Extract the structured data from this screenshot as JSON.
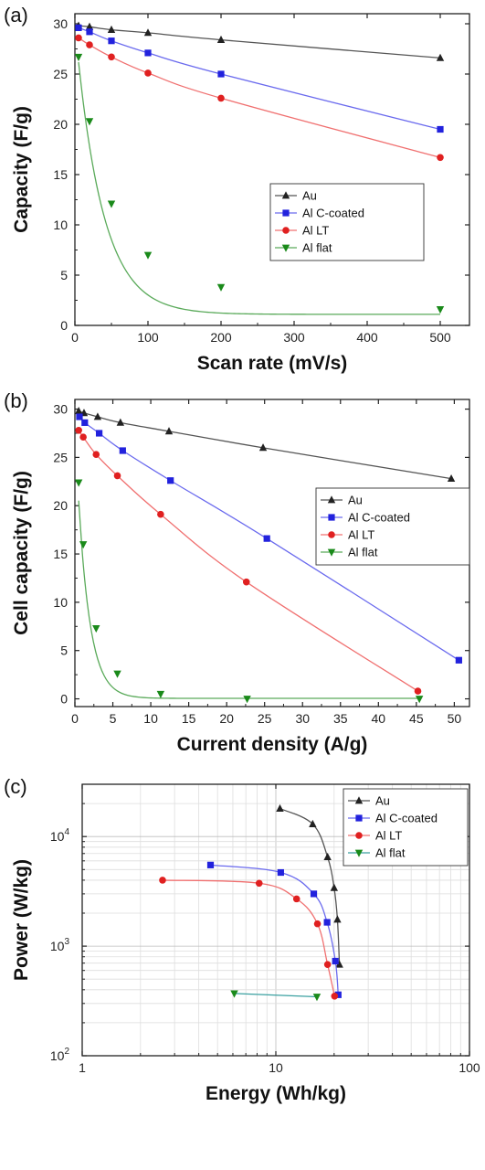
{
  "series_colors": {
    "Au": "#222222",
    "Al C-coated": "#2222dd",
    "Al LT": "#e02020",
    "Al flat": "#1a8a1a"
  },
  "line_colors": {
    "Au": "#555555",
    "Al C-coated": "#6a6aee",
    "Al LT": "#f07070",
    "Al flat": "#5aaa5a",
    "Al flat (c)": "#3aa0a0"
  },
  "chart_data": [
    {
      "panel_label": "(a)",
      "type": "line",
      "xlabel": "Scan rate (mV/s)",
      "ylabel": "Capacity (F/g)",
      "xlim": [
        0,
        540
      ],
      "ylim": [
        0,
        31
      ],
      "xticks": [
        0,
        100,
        200,
        300,
        400,
        500
      ],
      "xtick_labels": [
        "0",
        "100",
        "200",
        "300",
        "400",
        "500"
      ],
      "yticks": [
        0,
        5,
        10,
        15,
        20,
        25,
        30
      ],
      "ytick_labels": [
        "0",
        "5",
        "10",
        "15",
        "20",
        "25",
        "30"
      ],
      "legend_position": "center-right",
      "series": [
        {
          "name": "Au",
          "marker": "triangle-up",
          "x": [
            5,
            20,
            50,
            100,
            200,
            500
          ],
          "y": [
            29.8,
            29.7,
            29.4,
            29.1,
            28.4,
            26.6
          ]
        },
        {
          "name": "Al C-coated",
          "marker": "square",
          "x": [
            5,
            20,
            50,
            100,
            200,
            500
          ],
          "y": [
            29.6,
            29.2,
            28.3,
            27.1,
            25.0,
            19.5
          ]
        },
        {
          "name": "Al LT",
          "marker": "circle",
          "x": [
            5,
            20,
            50,
            100,
            200,
            500
          ],
          "y": [
            28.6,
            27.9,
            26.7,
            25.1,
            22.6,
            16.7
          ]
        },
        {
          "name": "Al flat",
          "marker": "triangle-down",
          "x": [
            5,
            20,
            50,
            100,
            200,
            500
          ],
          "y": [
            26.7,
            20.3,
            12.1,
            7.0,
            3.8,
            1.6
          ]
        }
      ]
    },
    {
      "panel_label": "(b)",
      "type": "line",
      "xlabel": "Current density (A/g)",
      "ylabel": "Cell capacity (F/g)",
      "xlim": [
        0,
        52
      ],
      "ylim": [
        -0.8,
        31
      ],
      "xticks": [
        0,
        5,
        10,
        15,
        20,
        25,
        30,
        35,
        40,
        45,
        50
      ],
      "xtick_labels": [
        "0",
        "5",
        "10",
        "15",
        "20",
        "25",
        "30",
        "35",
        "40",
        "45",
        "50"
      ],
      "yticks": [
        0,
        5,
        10,
        15,
        20,
        25,
        30
      ],
      "ytick_labels": [
        "0",
        "5",
        "10",
        "15",
        "20",
        "25",
        "30"
      ],
      "legend_position": "center-right",
      "series": [
        {
          "name": "Au",
          "marker": "triangle-up",
          "x": [
            0.5,
            1.2,
            3,
            6,
            12.4,
            24.8,
            49.6
          ],
          "y": [
            29.8,
            29.6,
            29.2,
            28.6,
            27.7,
            26.0,
            22.8
          ]
        },
        {
          "name": "Al C-coated",
          "marker": "square",
          "x": [
            0.6,
            1.3,
            3.2,
            6.3,
            12.6,
            25.3,
            50.6
          ],
          "y": [
            29.2,
            28.6,
            27.5,
            25.7,
            22.6,
            16.6,
            4.0
          ]
        },
        {
          "name": "Al LT",
          "marker": "circle",
          "x": [
            0.5,
            1.1,
            2.8,
            5.6,
            11.3,
            22.6,
            45.2
          ],
          "y": [
            27.8,
            27.1,
            25.3,
            23.1,
            19.1,
            12.1,
            0.8
          ]
        },
        {
          "name": "Al flat",
          "marker": "triangle-down",
          "x": [
            0.5,
            1.1,
            2.8,
            5.6,
            11.3,
            22.7,
            45.4
          ],
          "y": [
            22.4,
            16.0,
            7.3,
            2.6,
            0.5,
            0.0,
            0.0
          ]
        }
      ]
    },
    {
      "panel_label": "(c)",
      "type": "line",
      "xscale": "log",
      "yscale": "log",
      "xlabel": "Energy (Wh/kg)",
      "ylabel": "Power (W/kg)",
      "xlim": [
        1,
        100
      ],
      "ylim": [
        100,
        30000
      ],
      "xticks": [
        1,
        10,
        100
      ],
      "xtick_labels": [
        "1",
        "10",
        "100"
      ],
      "yticks": [
        100,
        1000,
        10000
      ],
      "ytick_labels": [
        [
          "10",
          "2"
        ],
        [
          "10",
          "3"
        ],
        [
          "10",
          "4"
        ]
      ],
      "grid": true,
      "legend_position": "top-right",
      "series": [
        {
          "name": "Au",
          "marker": "triangle-up",
          "x": [
            10.5,
            15.5,
            18.5,
            20.0,
            20.8,
            21.3
          ],
          "y": [
            18000,
            13000,
            6500,
            3400,
            1750,
            680
          ]
        },
        {
          "name": "Al C-coated",
          "marker": "square",
          "x": [
            4.6,
            10.6,
            15.7,
            18.4,
            20.3,
            21.0
          ],
          "y": [
            5500,
            4700,
            3000,
            1650,
            730,
            360
          ]
        },
        {
          "name": "Al LT",
          "marker": "circle",
          "x": [
            2.6,
            8.2,
            12.8,
            16.4,
            18.5,
            20.1
          ],
          "y": [
            4000,
            3750,
            2700,
            1600,
            680,
            350
          ]
        },
        {
          "name": "Al flat",
          "marker": "triangle-down",
          "x": [
            6.1,
            16.3
          ],
          "y": [
            370,
            345
          ]
        }
      ]
    }
  ]
}
